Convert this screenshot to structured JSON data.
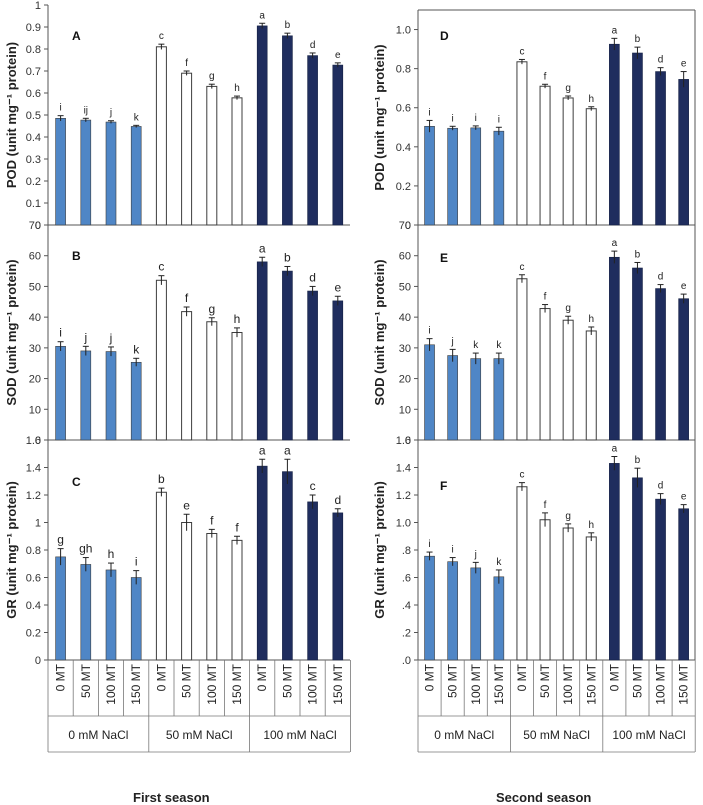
{
  "figure": {
    "footer_left": "First season",
    "footer_right": "Second season"
  },
  "colors": {
    "nacl0": "#4f86c6",
    "nacl50": "#ffffff",
    "nacl100": "#1f2d5e",
    "axis": "#555555"
  },
  "chart_data": [
    {
      "type": "bar",
      "panel": "A",
      "season": "First season",
      "letter": "A",
      "ylabel": "POD (unit mg⁻¹ protein)",
      "ylim": [
        0,
        1
      ],
      "yticks": [
        0,
        0.1,
        0.2,
        0.3,
        0.4,
        0.5,
        0.6,
        0.7,
        0.8,
        0.9,
        1
      ],
      "ytick_labels": [
        "0",
        "0.1",
        "0.2",
        "0.3",
        "0.4",
        "0.5",
        "0.6",
        "0.7",
        "0.8",
        "0.9",
        "1"
      ],
      "values": [
        0.485,
        0.477,
        0.468,
        0.448,
        0.81,
        0.69,
        0.63,
        0.578,
        0.905,
        0.86,
        0.77,
        0.727
      ],
      "errors": [
        0.012,
        0.008,
        0.006,
        0.005,
        0.012,
        0.01,
        0.01,
        0.008,
        0.012,
        0.012,
        0.012,
        0.01
      ],
      "sig": [
        "i",
        "ij",
        "j",
        "k",
        "c",
        "f",
        "g",
        "h",
        "a",
        "b",
        "d",
        "e"
      ]
    },
    {
      "type": "bar",
      "panel": "B",
      "season": "First season",
      "letter": "B",
      "ylabel": "SOD (unit mg⁻¹ protein)",
      "ylim": [
        0,
        70
      ],
      "yticks": [
        0,
        10,
        20,
        30,
        40,
        50,
        60,
        70
      ],
      "ytick_labels": [
        "0",
        "10",
        "20",
        "30",
        "40",
        "50",
        "60",
        "70"
      ],
      "values": [
        30.5,
        29.0,
        28.8,
        25.3,
        52.0,
        41.8,
        38.5,
        35.0,
        58.0,
        55.0,
        48.5,
        45.3
      ],
      "errors": [
        1.5,
        1.5,
        1.5,
        1.3,
        1.5,
        1.5,
        1.3,
        1.5,
        1.5,
        1.5,
        1.5,
        1.5
      ],
      "sig": [
        "i",
        "j",
        "j",
        "k",
        "c",
        "f",
        "g",
        "h",
        "a",
        "b",
        "d",
        "e"
      ]
    },
    {
      "type": "bar",
      "panel": "C",
      "season": "First season",
      "letter": "C",
      "ylabel": "GR (unit mg⁻¹ protein)",
      "ylim": [
        0,
        1.6
      ],
      "yticks": [
        0,
        0.2,
        0.4,
        0.6,
        0.8,
        1,
        1.2,
        1.4,
        1.6
      ],
      "ytick_labels": [
        "0",
        "0.2",
        "0.4",
        "0.6",
        "0.8",
        "1",
        "1.2",
        "1.4",
        "1.6"
      ],
      "values": [
        0.75,
        0.695,
        0.655,
        0.6,
        1.22,
        1.0,
        0.92,
        0.87,
        1.41,
        1.37,
        1.15,
        1.07
      ],
      "errors": [
        0.06,
        0.05,
        0.05,
        0.05,
        0.03,
        0.06,
        0.03,
        0.03,
        0.05,
        0.09,
        0.05,
        0.03
      ],
      "sig": [
        "g",
        "gh",
        "h",
        "i",
        "b",
        "e",
        "f",
        "f",
        "a",
        "a",
        "c",
        "d"
      ]
    },
    {
      "type": "bar",
      "panel": "D",
      "season": "Second season",
      "letter": "D",
      "ylabel": "POD (unit mg⁻¹ protein)",
      "ylim": [
        0,
        1.1
      ],
      "yticks": [
        0,
        0.2,
        0.4,
        0.6,
        0.8,
        1.0
      ],
      "ytick_labels": [
        "0",
        "0.2",
        "0.4",
        "0.6",
        "0.8",
        "1.0"
      ],
      "values": [
        0.505,
        0.495,
        0.497,
        0.48,
        0.835,
        0.71,
        0.65,
        0.595,
        0.925,
        0.88,
        0.785,
        0.745
      ],
      "errors": [
        0.03,
        0.01,
        0.01,
        0.02,
        0.012,
        0.01,
        0.01,
        0.01,
        0.03,
        0.03,
        0.02,
        0.04
      ],
      "sig": [
        "i",
        "i",
        "i",
        "i",
        "c",
        "f",
        "g",
        "h",
        "a",
        "b",
        "d",
        "e"
      ]
    },
    {
      "type": "bar",
      "panel": "E",
      "season": "Second season",
      "letter": "E",
      "ylabel": "SOD (unit mg⁻¹ protein)",
      "ylim": [
        0,
        70
      ],
      "yticks": [
        0,
        10,
        20,
        30,
        40,
        50,
        60,
        70
      ],
      "ytick_labels": [
        "0",
        "10",
        "20",
        "30",
        "40",
        "50",
        "60",
        "70"
      ],
      "values": [
        31.0,
        27.5,
        26.5,
        26.5,
        52.5,
        42.8,
        39.0,
        35.5,
        59.5,
        56.0,
        49.3,
        46.0
      ],
      "errors": [
        2.0,
        2.0,
        1.8,
        1.8,
        1.3,
        1.3,
        1.3,
        1.3,
        2.0,
        1.8,
        1.3,
        1.5
      ],
      "sig": [
        "i",
        "j",
        "k",
        "k",
        "c",
        "f",
        "g",
        "h",
        "a",
        "b",
        "d",
        "e"
      ]
    },
    {
      "type": "bar",
      "panel": "F",
      "season": "Second season",
      "letter": "F",
      "ylabel": "GR (unit mg⁻¹ protein)",
      "ylim": [
        0,
        1.6
      ],
      "yticks": [
        0,
        0.2,
        0.4,
        0.6,
        0.8,
        1.0,
        1.2,
        1.4,
        1.6
      ],
      "ytick_labels": [
        ".0",
        ".2",
        ".4",
        ".6",
        ".8",
        "1.0",
        "1.2",
        "1.4",
        "1.6"
      ],
      "values": [
        0.755,
        0.715,
        0.67,
        0.605,
        1.26,
        1.02,
        0.96,
        0.895,
        1.43,
        1.325,
        1.17,
        1.1
      ],
      "errors": [
        0.03,
        0.03,
        0.04,
        0.05,
        0.03,
        0.05,
        0.03,
        0.03,
        0.05,
        0.07,
        0.04,
        0.03
      ],
      "sig": [
        "i",
        "i",
        "j",
        "k",
        "c",
        "f",
        "g",
        "h",
        "a",
        "b",
        "d",
        "e"
      ]
    }
  ],
  "x_axis": {
    "mt_labels": [
      "0 MT",
      "50 MT",
      "100 MT",
      "150 MT",
      "0 MT",
      "50 MT",
      "100 MT",
      "150 MT",
      "0 MT",
      "50 MT",
      "100 MT",
      "150 MT"
    ],
    "group_labels": [
      "0 mM NaCl",
      "50 mM NaCl",
      "100 mM NaCl"
    ]
  }
}
